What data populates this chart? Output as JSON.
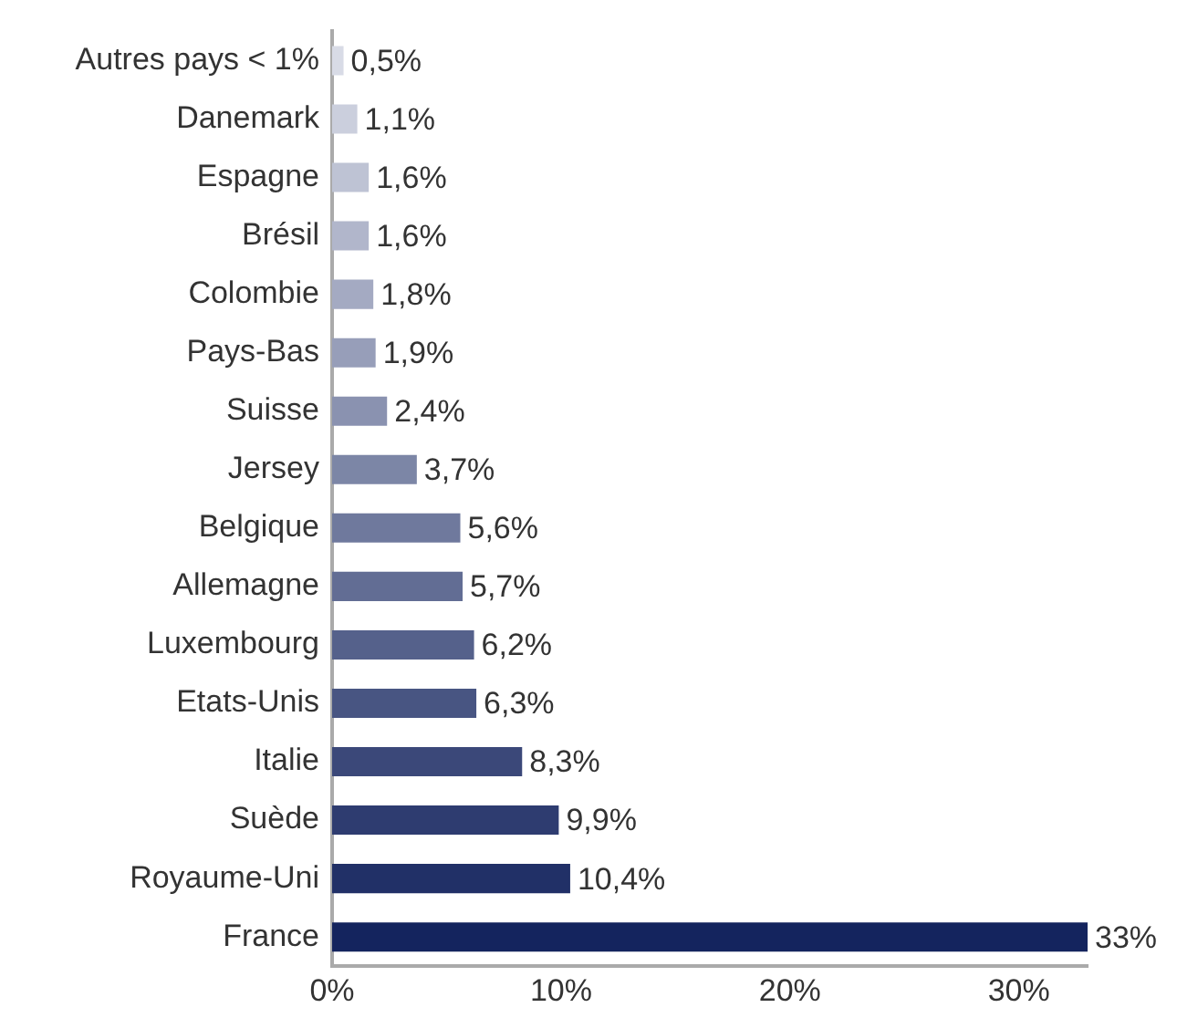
{
  "chart_data": {
    "type": "bar",
    "orientation": "horizontal",
    "categories": [
      "Autres pays < 1%",
      "Danemark",
      "Espagne",
      "Brésil",
      "Colombie",
      "Pays-Bas",
      "Suisse",
      "Jersey",
      "Belgique",
      "Allemagne",
      "Luxembourg",
      "Etats-Unis",
      "Italie",
      "Suède",
      "Royaume-Uni",
      "France"
    ],
    "values": [
      0.5,
      1.1,
      1.6,
      1.6,
      1.8,
      1.9,
      2.4,
      3.7,
      5.6,
      5.7,
      6.2,
      6.3,
      8.3,
      9.9,
      10.4,
      33
    ],
    "value_labels": [
      "0,5%",
      "1,1%",
      "1,6%",
      "1,6%",
      "1,8%",
      "1,9%",
      "2,4%",
      "3,7%",
      "5,6%",
      "5,7%",
      "6,2%",
      "6,3%",
      "8,3%",
      "9,9%",
      "10,4%",
      "33%"
    ],
    "colors": [
      "#d8dbe6",
      "#cbcfdd",
      "#bec3d4",
      "#b1b6cb",
      "#a4aac2",
      "#979eb9",
      "#8a92b0",
      "#7c86a6",
      "#6f799d",
      "#626d94",
      "#55618b",
      "#485582",
      "#3b4879",
      "#2e3c70",
      "#213067",
      "#14245e"
    ],
    "xlim": [
      0,
      33
    ],
    "xticks": [
      {
        "value": 0,
        "label": "0%"
      },
      {
        "value": 10,
        "label": "10%"
      },
      {
        "value": 20,
        "label": "20%"
      },
      {
        "value": 30,
        "label": "30%"
      }
    ],
    "grid": false,
    "legend": false
  }
}
